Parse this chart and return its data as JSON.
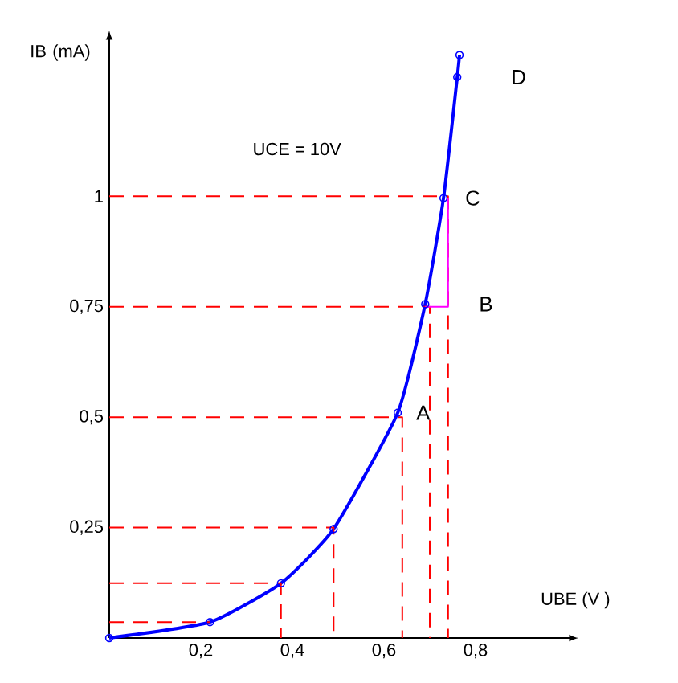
{
  "chart_data": {
    "type": "line",
    "annotations": [
      "UCE = 10V",
      {
        "text": "A",
        "x": 0.63,
        "y": 0.51
      },
      {
        "text": "B",
        "x": 0.69,
        "y": 0.756
      },
      {
        "text": "C",
        "x": 0.73,
        "y": 0.996
      },
      {
        "text": "D",
        "x": 0.76,
        "y": 1.27
      }
    ],
    "xlabel": "UBE  (V )",
    "ylabel": "IB (mA)",
    "xlim": [
      0,
      1.0
    ],
    "ylim": [
      0,
      1.35
    ],
    "xticks": [
      {
        "value": 0.2,
        "label": "0,2"
      },
      {
        "value": 0.4,
        "label": "0,4"
      },
      {
        "value": 0.6,
        "label": "0,6"
      },
      {
        "value": 0.8,
        "label": "0,8"
      }
    ],
    "yticks": [
      {
        "value": 0.25,
        "label": "0,25"
      },
      {
        "value": 0.5,
        "label": "0,5"
      },
      {
        "value": 0.75,
        "label": "0,75"
      },
      1
    ],
    "grid": false,
    "marker": "circle",
    "line_style": "solid",
    "series": [
      {
        "color": "#0000ff",
        "x": [
          0,
          0.22,
          0.375,
          0.49,
          0.63,
          0.69,
          0.73,
          0.76,
          0.765
        ],
        "values": [
          0,
          0.036,
          0.124,
          0.247,
          0.51,
          0.756,
          0.996,
          1.27,
          1.32
        ]
      },
      {
        "color": "#ff0000",
        "line_style": "dashed",
        "marker": "none",
        "x": [
          0,
          0.22
        ],
        "values": [
          0.036,
          0.036
        ]
      },
      {
        "color": "#ff0000",
        "line_style": "dashed",
        "marker": "none",
        "x": [
          0,
          0.375,
          0.375
        ],
        "values": [
          0.124,
          0.124,
          0
        ]
      },
      {
        "color": "#ff0000",
        "line_style": "dashed",
        "marker": "none",
        "x": [
          0,
          0.49,
          0.49
        ],
        "values": [
          0.25,
          0.25,
          0
        ]
      },
      {
        "color": "#ff0000",
        "line_style": "dashed",
        "marker": "none",
        "x": [
          0,
          0.64,
          0.64
        ],
        "values": [
          0.5,
          0.5,
          0
        ]
      },
      {
        "color": "#ff0000",
        "line_style": "dashed",
        "marker": "none",
        "x": [
          0,
          0.7,
          0.7
        ],
        "values": [
          0.75,
          0.75,
          0
        ]
      },
      {
        "color": "#ff0000",
        "line_style": "dashed",
        "marker": "none",
        "x": [
          0,
          0.74,
          0.74
        ],
        "values": [
          1,
          1,
          0
        ]
      },
      {
        "color": "#ff00ff",
        "line_style": "solid",
        "marker": "none",
        "x": [
          0.69,
          0.74,
          0.74
        ],
        "values": [
          0.75,
          0.75,
          0.996
        ]
      }
    ]
  }
}
